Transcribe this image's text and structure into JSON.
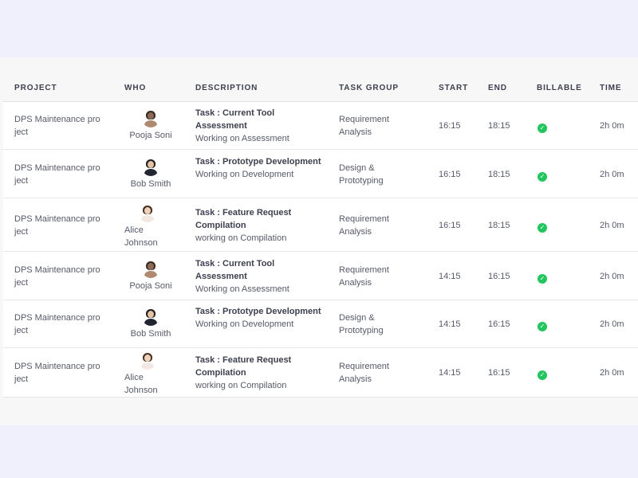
{
  "headers": {
    "project": "PROJECT",
    "who": "WHO",
    "description": "DESCRIPTION",
    "task_group": "TASK GROUP",
    "start": "START",
    "end": "END",
    "billable": "BILLABLE",
    "time": "TIME"
  },
  "rows": [
    {
      "project": "DPS Maintenance pro ject",
      "who": "Pooja Soni",
      "task_title": "Task : Current Tool Assessment",
      "task_sub": "Working on Assessment",
      "task_group": "Requirement Analysis",
      "start": "16:15",
      "end": "18:15",
      "billable": true,
      "time": "2h 0m"
    },
    {
      "project": "DPS Maintenance pro ject",
      "who": "Bob Smith",
      "task_title": "Task : Prototype Development",
      "task_sub": "Working on Development",
      "task_group": "Design & Prototyping",
      "start": "16:15",
      "end": "18:15",
      "billable": true,
      "time": "2h 0m"
    },
    {
      "project": "DPS Maintenance pro ject",
      "who": "Alice Johnson",
      "task_title": "Task : Feature Request Compilation",
      "task_sub": "working on Compilation",
      "task_group": "Requirement Analysis",
      "start": "16:15",
      "end": "18:15",
      "billable": true,
      "time": "2h 0m"
    },
    {
      "project": "DPS Maintenance pro ject",
      "who": "Pooja Soni",
      "task_title": "Task : Current Tool Assessment",
      "task_sub": "Working on Assessment",
      "task_group": "Requirement Analysis",
      "start": "14:15",
      "end": "16:15",
      "billable": true,
      "time": "2h 0m"
    },
    {
      "project": "DPS Maintenance pro ject",
      "who": "Bob Smith",
      "task_title": "Task : Prototype Development",
      "task_sub": "Working on Development",
      "task_group": "Design & Prototyping",
      "start": "14:15",
      "end": "16:15",
      "billable": true,
      "time": "2h 0m"
    },
    {
      "project": "DPS Maintenance pro ject",
      "who": "Alice Johnson",
      "task_title": "Task : Feature Request Compilation",
      "task_sub": "working on Compilation",
      "task_group": "Requirement Analysis",
      "start": "14:15",
      "end": "16:15",
      "billable": true,
      "time": "2h 0m"
    }
  ],
  "colors": {
    "page_bg": "#f0f0fc",
    "panel_bg": "#f7f7f7",
    "billable_check": "#22c55e"
  }
}
